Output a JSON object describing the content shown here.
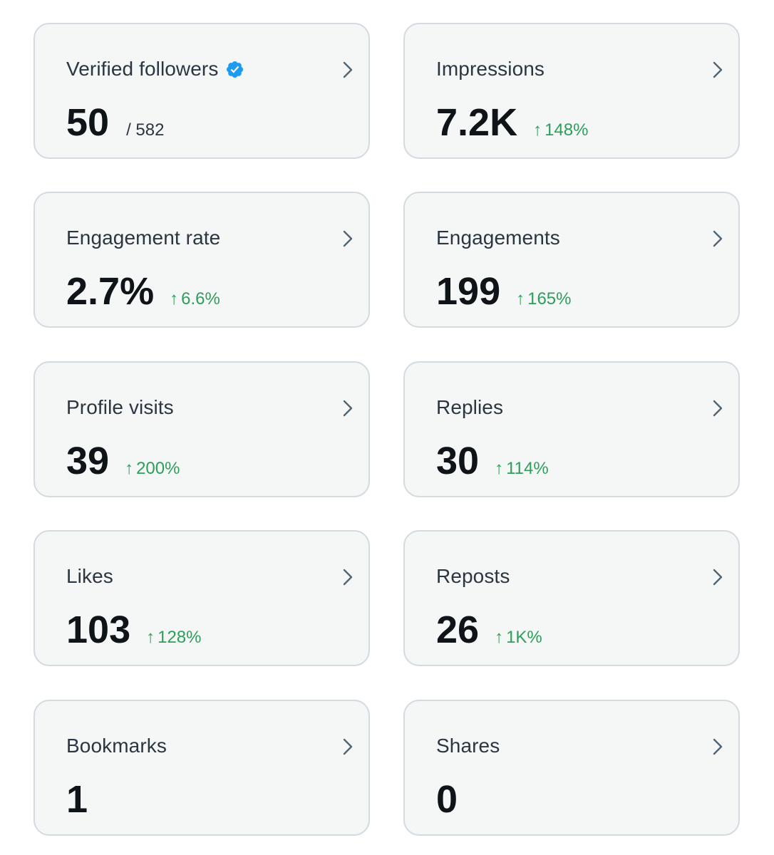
{
  "colors": {
    "card_background": "#f5f6f6",
    "card_border": "#d3dbe1",
    "positive_change": "#2e9e5b",
    "verified_badge": "#1d9bf0"
  },
  "icons": {
    "chevron": "chevron-right-icon",
    "verified": "verified-badge-icon",
    "trend": "arrow-up-icon"
  },
  "cards": [
    {
      "title": "Verified followers",
      "value": "50",
      "sub": "/ 582",
      "change": ""
    },
    {
      "title": "Impressions",
      "value": "7.2K",
      "sub": "",
      "change": "148%"
    },
    {
      "title": "Engagement rate",
      "value": "2.7%",
      "sub": "",
      "change": "6.6%"
    },
    {
      "title": "Engagements",
      "value": "199",
      "sub": "",
      "change": "165%"
    },
    {
      "title": "Profile visits",
      "value": "39",
      "sub": "",
      "change": "200%"
    },
    {
      "title": "Replies",
      "value": "30",
      "sub": "",
      "change": "114%"
    },
    {
      "title": "Likes",
      "value": "103",
      "sub": "",
      "change": "128%"
    },
    {
      "title": "Reposts",
      "value": "26",
      "sub": "",
      "change": "1K%"
    },
    {
      "title": "Bookmarks",
      "value": "1",
      "sub": "",
      "change": ""
    },
    {
      "title": "Shares",
      "value": "0",
      "sub": "",
      "change": ""
    }
  ]
}
